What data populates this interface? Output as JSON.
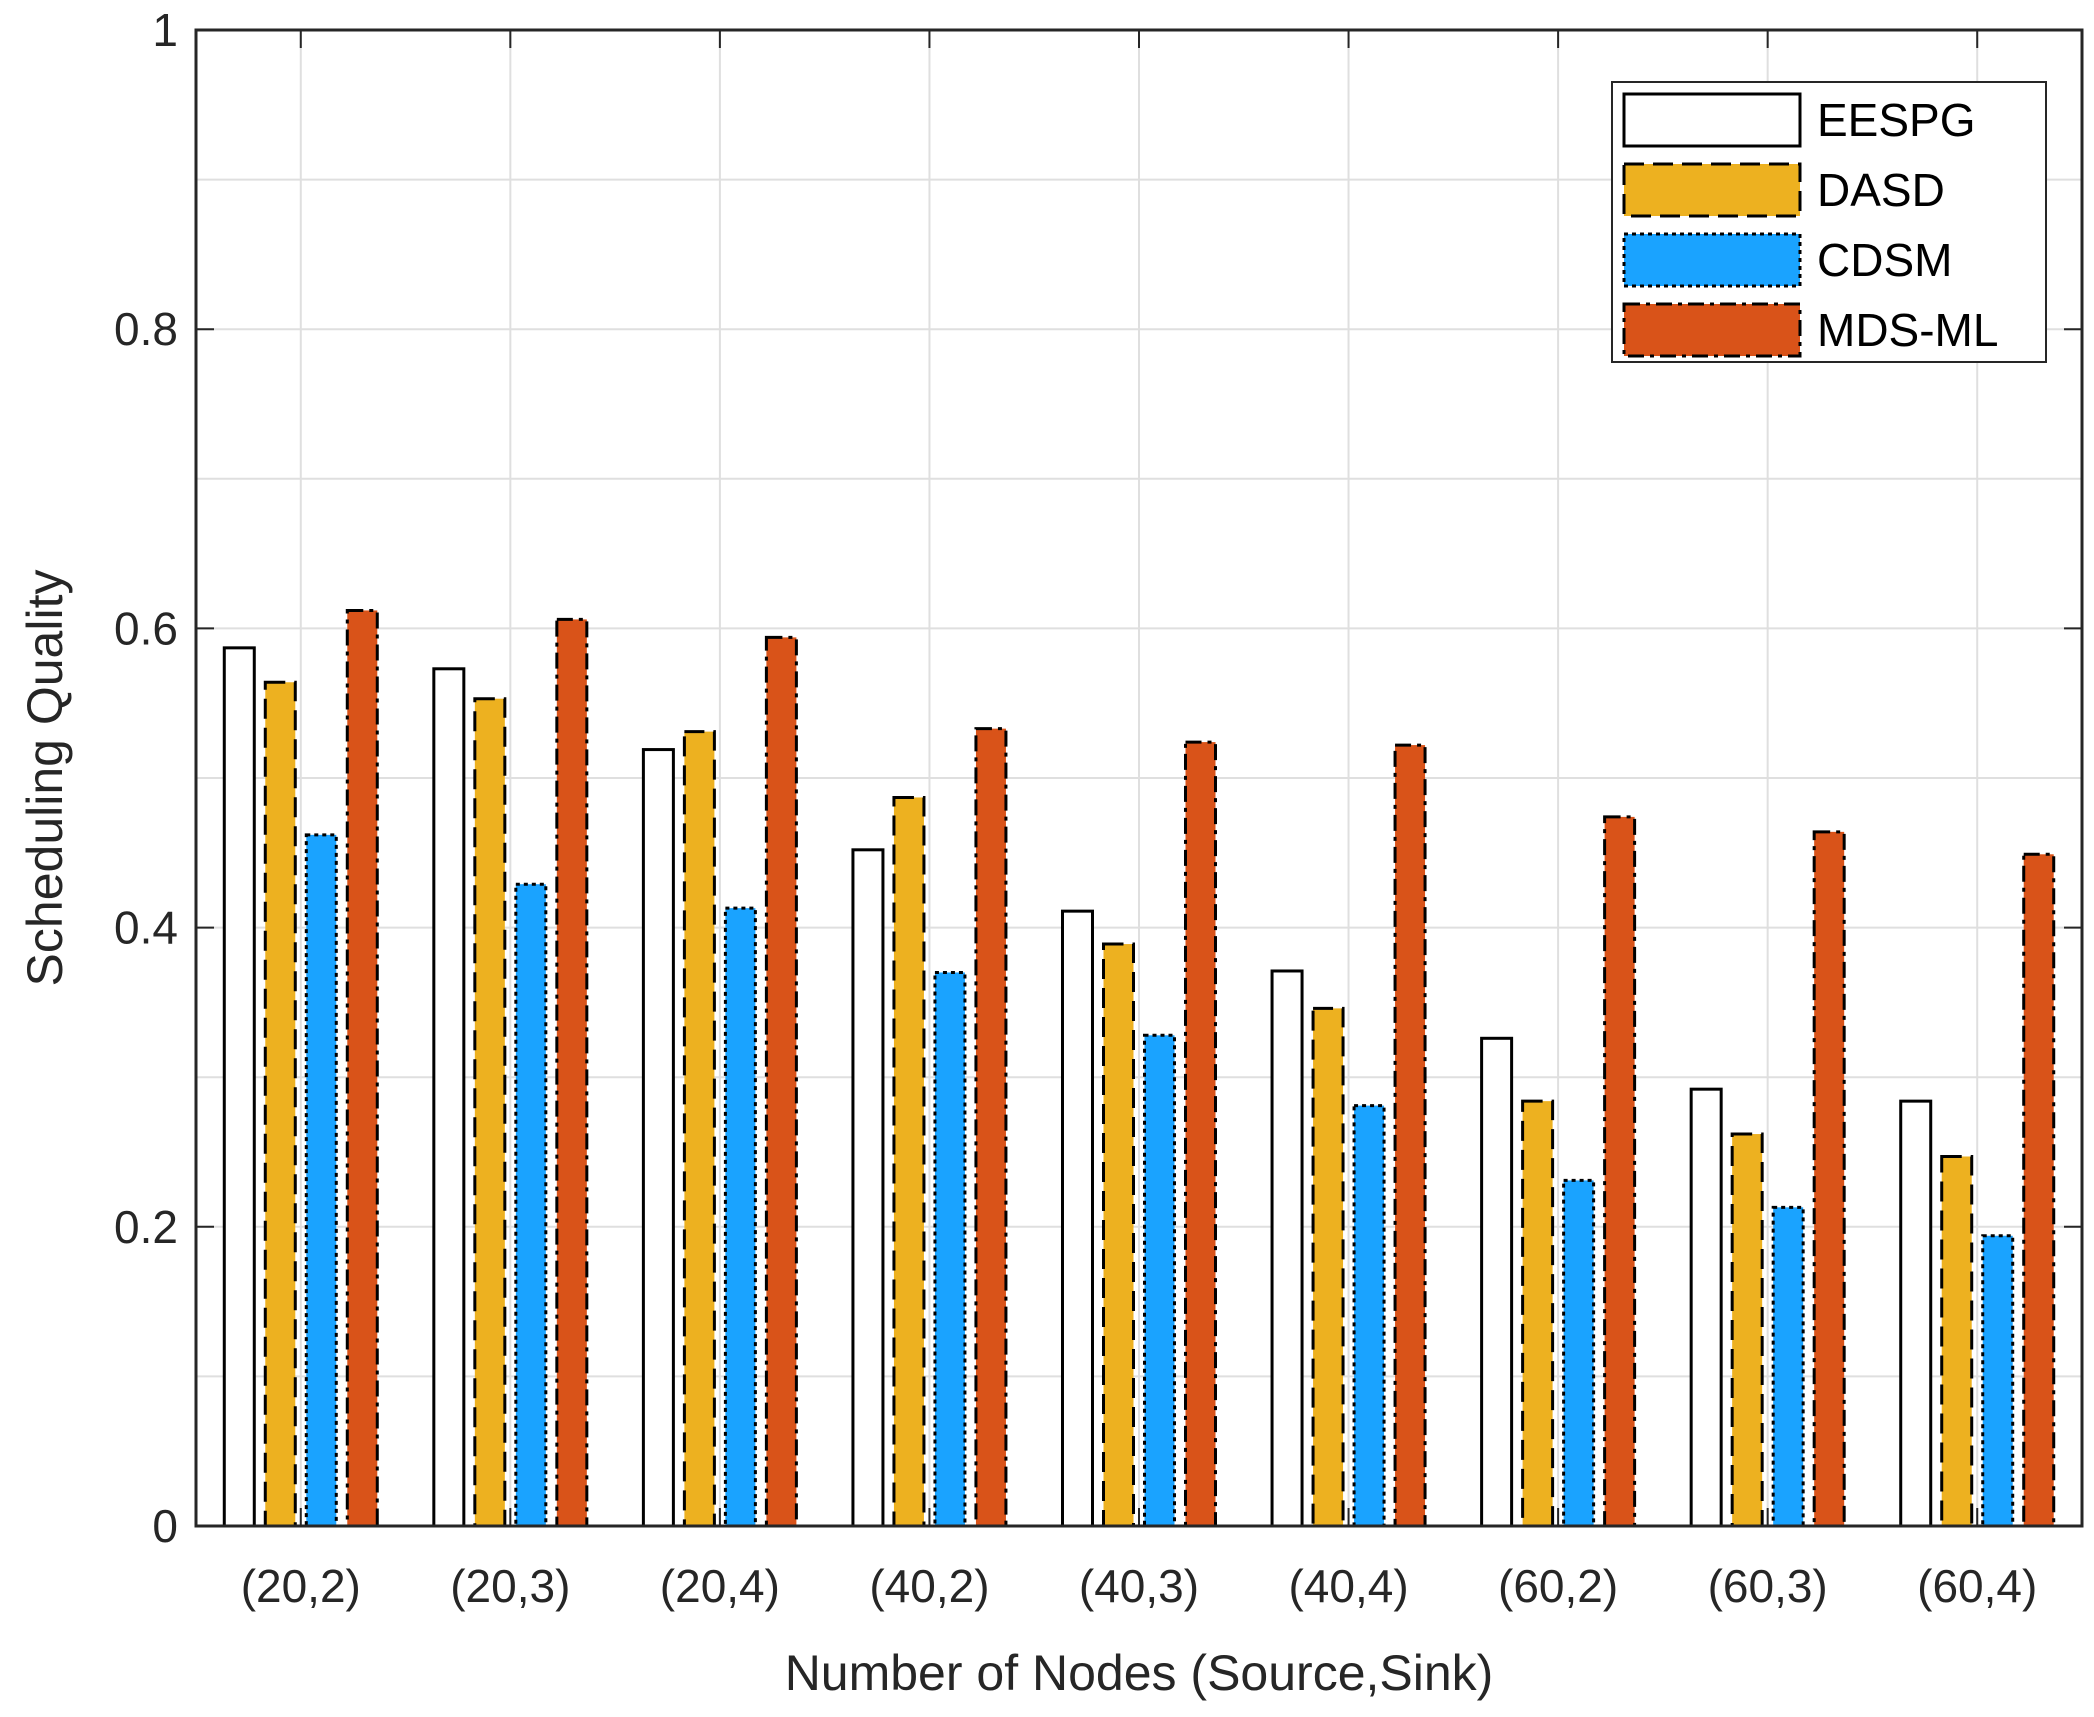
{
  "chart_data": {
    "type": "bar",
    "title": "",
    "xlabel": "Number of Nodes (Source,Sink)",
    "ylabel": "Scheduling Quality",
    "ylim": [
      0,
      1
    ],
    "yticks": [
      0,
      0.2,
      0.4,
      0.6,
      0.8,
      1
    ],
    "ytick_labels": [
      "0",
      "0.2",
      "0.4",
      "0.6",
      "0.8",
      "1"
    ],
    "grid": true,
    "legend_position": "top-right",
    "categories": [
      "(20,2)",
      "(20,3)",
      "(20,4)",
      "(40,2)",
      "(40,3)",
      "(40,4)",
      "(60,2)",
      "(60,3)",
      "(60,4)"
    ],
    "series": [
      {
        "name": "EESPG",
        "color": "#ffffff",
        "line_style": "solid",
        "values": [
          0.587,
          0.573,
          0.519,
          0.452,
          0.411,
          0.371,
          0.326,
          0.292,
          0.284
        ]
      },
      {
        "name": "DASD",
        "color": "#edb120",
        "line_style": "dashed",
        "values": [
          0.564,
          0.553,
          0.531,
          0.487,
          0.389,
          0.346,
          0.284,
          0.262,
          0.247
        ]
      },
      {
        "name": "CDSM",
        "color": "#1aa3ff",
        "line_style": "dotted",
        "values": [
          0.462,
          0.429,
          0.413,
          0.37,
          0.328,
          0.281,
          0.231,
          0.213,
          0.194
        ]
      },
      {
        "name": "MDS-ML",
        "color": "#d95319",
        "line_style": "dashdot",
        "values": [
          0.612,
          0.606,
          0.594,
          0.533,
          0.524,
          0.522,
          0.474,
          0.464,
          0.449
        ]
      }
    ]
  }
}
